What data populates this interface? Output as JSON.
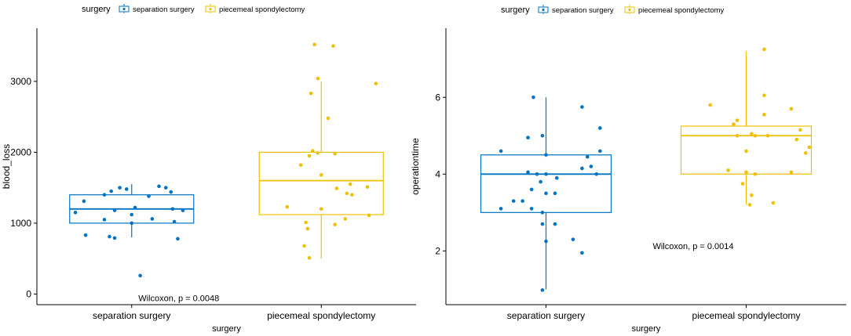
{
  "chart_data": [
    {
      "type": "boxplot",
      "legend": {
        "title": "surgery",
        "entries": [
          {
            "label": "separation surgery",
            "color": "#0073C2"
          },
          {
            "label": "piecemeal spondylectomy",
            "color": "#EFC000"
          }
        ],
        "placement": "top"
      },
      "xlabel": "surgery",
      "ylabel": "blood_loss",
      "ylim": [
        -150,
        3750
      ],
      "yticks": [
        0,
        1000,
        2000,
        3000
      ],
      "categories": [
        "separation surgery",
        "piecemeal spondylectomy"
      ],
      "annotation": "Wilcoxon, p = 0.0048",
      "annotation_at": {
        "x": 0.5,
        "y": -100
      },
      "series": [
        {
          "name": "separation surgery",
          "color": "#0073C2",
          "box": {
            "min": 800,
            "q1": 1000,
            "median": 1200,
            "q3": 1400,
            "max": 1550
          },
          "points": [
            {
              "x": -0.07,
              "y": 1500
            },
            {
              "x": -0.03,
              "y": 1480
            },
            {
              "x": 0.16,
              "y": 1520
            },
            {
              "x": 0.2,
              "y": 1500
            },
            {
              "x": 0.23,
              "y": 1440
            },
            {
              "x": -0.12,
              "y": 1450
            },
            {
              "x": -0.16,
              "y": 1400
            },
            {
              "x": 0.1,
              "y": 1380
            },
            {
              "x": -0.28,
              "y": 1310
            },
            {
              "x": 0.02,
              "y": 1220
            },
            {
              "x": 0.24,
              "y": 1200
            },
            {
              "x": 0.3,
              "y": 1180
            },
            {
              "x": -0.33,
              "y": 1150
            },
            {
              "x": -0.1,
              "y": 1180
            },
            {
              "x": 0.0,
              "y": 1120
            },
            {
              "x": -0.16,
              "y": 1050
            },
            {
              "x": 0.12,
              "y": 1060
            },
            {
              "x": 0.25,
              "y": 1020
            },
            {
              "x": 0.0,
              "y": 1000
            },
            {
              "x": -0.27,
              "y": 830
            },
            {
              "x": -0.13,
              "y": 810
            },
            {
              "x": -0.1,
              "y": 790
            },
            {
              "x": 0.27,
              "y": 780
            },
            {
              "x": 0.05,
              "y": 260
            }
          ]
        },
        {
          "name": "piecemeal spondylectomy",
          "color": "#EFC000",
          "box": {
            "min": 500,
            "q1": 1120,
            "median": 1600,
            "q3": 2000,
            "max": 3000
          },
          "points": [
            {
              "x": -0.04,
              "y": 3520
            },
            {
              "x": 0.07,
              "y": 3500
            },
            {
              "x": -0.02,
              "y": 3040
            },
            {
              "x": 0.32,
              "y": 2970
            },
            {
              "x": -0.06,
              "y": 2830
            },
            {
              "x": 0.04,
              "y": 2480
            },
            {
              "x": -0.05,
              "y": 2020
            },
            {
              "x": -0.02,
              "y": 1990
            },
            {
              "x": 0.08,
              "y": 1980
            },
            {
              "x": -0.07,
              "y": 1950
            },
            {
              "x": -0.12,
              "y": 1820
            },
            {
              "x": 0.0,
              "y": 1680
            },
            {
              "x": 0.17,
              "y": 1550
            },
            {
              "x": 0.27,
              "y": 1510
            },
            {
              "x": 0.09,
              "y": 1490
            },
            {
              "x": 0.15,
              "y": 1420
            },
            {
              "x": 0.18,
              "y": 1400
            },
            {
              "x": 0.0,
              "y": 1200
            },
            {
              "x": -0.2,
              "y": 1230
            },
            {
              "x": 0.28,
              "y": 1110
            },
            {
              "x": 0.14,
              "y": 1060
            },
            {
              "x": -0.09,
              "y": 1010
            },
            {
              "x": 0.08,
              "y": 980
            },
            {
              "x": -0.08,
              "y": 920
            },
            {
              "x": -0.1,
              "y": 680
            },
            {
              "x": -0.07,
              "y": 510
            }
          ]
        }
      ]
    },
    {
      "type": "boxplot",
      "legend": {
        "title": "surgery",
        "entries": [
          {
            "label": "separation surgery",
            "color": "#0073C2"
          },
          {
            "label": "piecemeal spondylectomy",
            "color": "#EFC000"
          }
        ],
        "placement": "top"
      },
      "xlabel": "surgery",
      "ylabel": "operationtime",
      "ylim": [
        0.6,
        7.8
      ],
      "yticks": [
        2,
        4,
        6
      ],
      "categories": [
        "separation surgery",
        "piecemeal spondylectomy"
      ],
      "annotation": "Wilcoxon, p = 0.0014",
      "annotation_at": {
        "x": 1.0,
        "y": 2.05
      },
      "series": [
        {
          "name": "separation surgery",
          "color": "#0073C2",
          "box": {
            "min": 1.0,
            "q1": 3.0,
            "median": 4.0,
            "q3": 4.5,
            "max": 6.0
          },
          "points": [
            {
              "x": -0.07,
              "y": 6.0
            },
            {
              "x": 0.2,
              "y": 5.75
            },
            {
              "x": 0.3,
              "y": 5.2
            },
            {
              "x": -0.02,
              "y": 5.0
            },
            {
              "x": -0.1,
              "y": 4.95
            },
            {
              "x": -0.25,
              "y": 4.6
            },
            {
              "x": 0.3,
              "y": 4.6
            },
            {
              "x": 0.0,
              "y": 4.5
            },
            {
              "x": 0.23,
              "y": 4.45
            },
            {
              "x": 0.25,
              "y": 4.2
            },
            {
              "x": 0.2,
              "y": 4.15
            },
            {
              "x": 0.28,
              "y": 4.0
            },
            {
              "x": -0.1,
              "y": 4.05
            },
            {
              "x": -0.05,
              "y": 4.0
            },
            {
              "x": 0.0,
              "y": 4.0
            },
            {
              "x": 0.06,
              "y": 3.9
            },
            {
              "x": -0.03,
              "y": 3.8
            },
            {
              "x": -0.08,
              "y": 3.6
            },
            {
              "x": 0.0,
              "y": 3.5
            },
            {
              "x": 0.05,
              "y": 3.5
            },
            {
              "x": -0.18,
              "y": 3.3
            },
            {
              "x": -0.13,
              "y": 3.3
            },
            {
              "x": -0.08,
              "y": 3.1
            },
            {
              "x": -0.25,
              "y": 3.1
            },
            {
              "x": -0.02,
              "y": 3.0
            },
            {
              "x": 0.05,
              "y": 2.7
            },
            {
              "x": -0.02,
              "y": 2.7
            },
            {
              "x": 0.0,
              "y": 2.25
            },
            {
              "x": 0.15,
              "y": 2.3
            },
            {
              "x": 0.2,
              "y": 1.95
            },
            {
              "x": -0.02,
              "y": 0.98
            }
          ]
        },
        {
          "name": "piecemeal spondylectomy",
          "color": "#EFC000",
          "box": {
            "min": 3.2,
            "q1": 4.0,
            "median": 5.0,
            "q3": 5.25,
            "max": 7.2
          },
          "points": [
            {
              "x": 0.1,
              "y": 7.25
            },
            {
              "x": 0.1,
              "y": 6.05
            },
            {
              "x": -0.2,
              "y": 5.8
            },
            {
              "x": 0.25,
              "y": 5.7
            },
            {
              "x": 0.1,
              "y": 5.55
            },
            {
              "x": -0.05,
              "y": 5.4
            },
            {
              "x": -0.07,
              "y": 5.3
            },
            {
              "x": 0.3,
              "y": 5.15
            },
            {
              "x": 0.03,
              "y": 5.05
            },
            {
              "x": -0.05,
              "y": 5.0
            },
            {
              "x": 0.05,
              "y": 5.0
            },
            {
              "x": 0.12,
              "y": 5.0
            },
            {
              "x": 0.28,
              "y": 4.9
            },
            {
              "x": 0.35,
              "y": 4.7
            },
            {
              "x": 0.33,
              "y": 4.55
            },
            {
              "x": 0.0,
              "y": 4.6
            },
            {
              "x": -0.1,
              "y": 4.1
            },
            {
              "x": 0.0,
              "y": 4.05
            },
            {
              "x": 0.05,
              "y": 4.0
            },
            {
              "x": 0.25,
              "y": 4.05
            },
            {
              "x": -0.02,
              "y": 3.75
            },
            {
              "x": 0.03,
              "y": 3.45
            },
            {
              "x": 0.02,
              "y": 3.2
            },
            {
              "x": 0.15,
              "y": 3.25
            }
          ]
        }
      ]
    }
  ]
}
